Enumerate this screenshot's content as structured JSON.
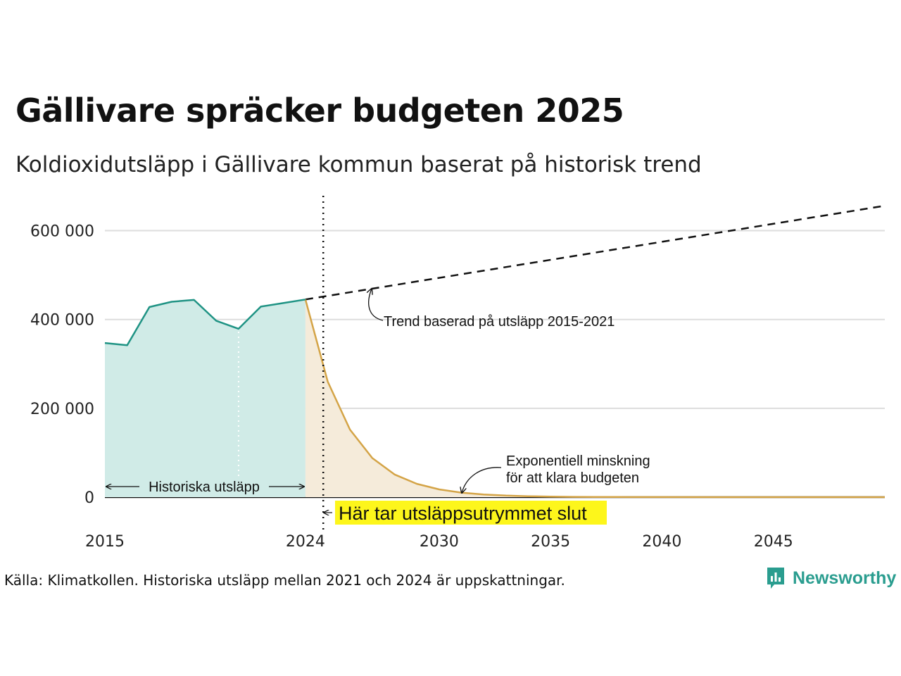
{
  "title": "Gällivare spräcker budgeten 2025",
  "subtitle": "Koldioxidutsläpp i Gällivare kommun baserat på historisk trend",
  "source": "Källa: Klimatkollen. Historiska utsläpp mellan 2021 och 2024 är uppskattningar.",
  "brand": {
    "name": "Newsworthy",
    "color": "#2a9d8f"
  },
  "colors": {
    "historical_line": "#1f9384",
    "historical_fill": "#d0ebe7",
    "budget_line": "#d4a447",
    "budget_fill": "#f5ebda",
    "trend_line": "#111111",
    "highlight": "#fdf61b",
    "gridline": "#dddddd"
  },
  "chart_data": {
    "type": "area",
    "xlim": [
      2015,
      2050
    ],
    "ylim": [
      0,
      650000
    ],
    "grid": true,
    "y_ticks": [
      0,
      200000,
      400000,
      600000
    ],
    "y_tick_labels": [
      "0",
      "200 000",
      "400 000",
      "600 000"
    ],
    "x_ticks": [
      2015,
      2024,
      2030,
      2035,
      2040,
      2045
    ],
    "x_tick_labels": [
      "2015",
      "2024",
      "2030",
      "2035",
      "2040",
      "2045"
    ],
    "series": [
      {
        "key": "historical",
        "style": "solid-area",
        "x": [
          2015,
          2016,
          2017,
          2018,
          2019,
          2020,
          2021,
          2022,
          2023,
          2024
        ],
        "y": [
          347000,
          342000,
          428000,
          440000,
          444000,
          397000,
          379000,
          429000,
          437000,
          445000
        ]
      },
      {
        "key": "budget",
        "style": "solid-area",
        "x": [
          2024,
          2025,
          2026,
          2027,
          2028,
          2029,
          2030,
          2031,
          2032,
          2033,
          2034,
          2035,
          2036,
          2037,
          2038,
          2040,
          2045,
          2050
        ],
        "y": [
          445000,
          260000,
          152000,
          88000,
          51000,
          30000,
          17500,
          10200,
          6000,
          3500,
          2000,
          1200,
          700,
          400,
          250,
          100,
          10,
          0
        ]
      },
      {
        "key": "trend",
        "style": "dashed",
        "x": [
          2024,
          2050
        ],
        "y": [
          445000,
          656000
        ]
      }
    ],
    "estimate_from_year": 2021,
    "budget_end_year": 2024.8,
    "annotations": {
      "historical": "Historiska utsläpp",
      "trend": "Trend baserad på utsläpp 2015-2021",
      "budget_line1": "Exponentiell minskning",
      "budget_line2": "för att klara budgeten",
      "budget_end": "Här tar utsläppsutrymmet slut"
    }
  }
}
